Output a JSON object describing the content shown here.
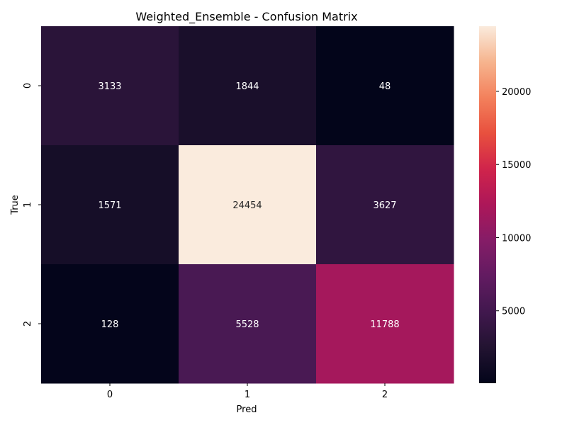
{
  "chart_data": {
    "type": "heatmap",
    "title": "Weighted_Ensemble - Confusion Matrix",
    "xlabel": "Pred",
    "ylabel": "True",
    "x_categories": [
      "0",
      "1",
      "2"
    ],
    "y_categories": [
      "0",
      "1",
      "2"
    ],
    "values": [
      [
        3133,
        1844,
        48
      ],
      [
        1571,
        24454,
        3627
      ],
      [
        128,
        5528,
        11788
      ]
    ],
    "colorbar": {
      "colormap": "rocket",
      "range": [
        48,
        24454
      ],
      "ticks": [
        5000,
        10000,
        15000,
        20000
      ]
    }
  }
}
